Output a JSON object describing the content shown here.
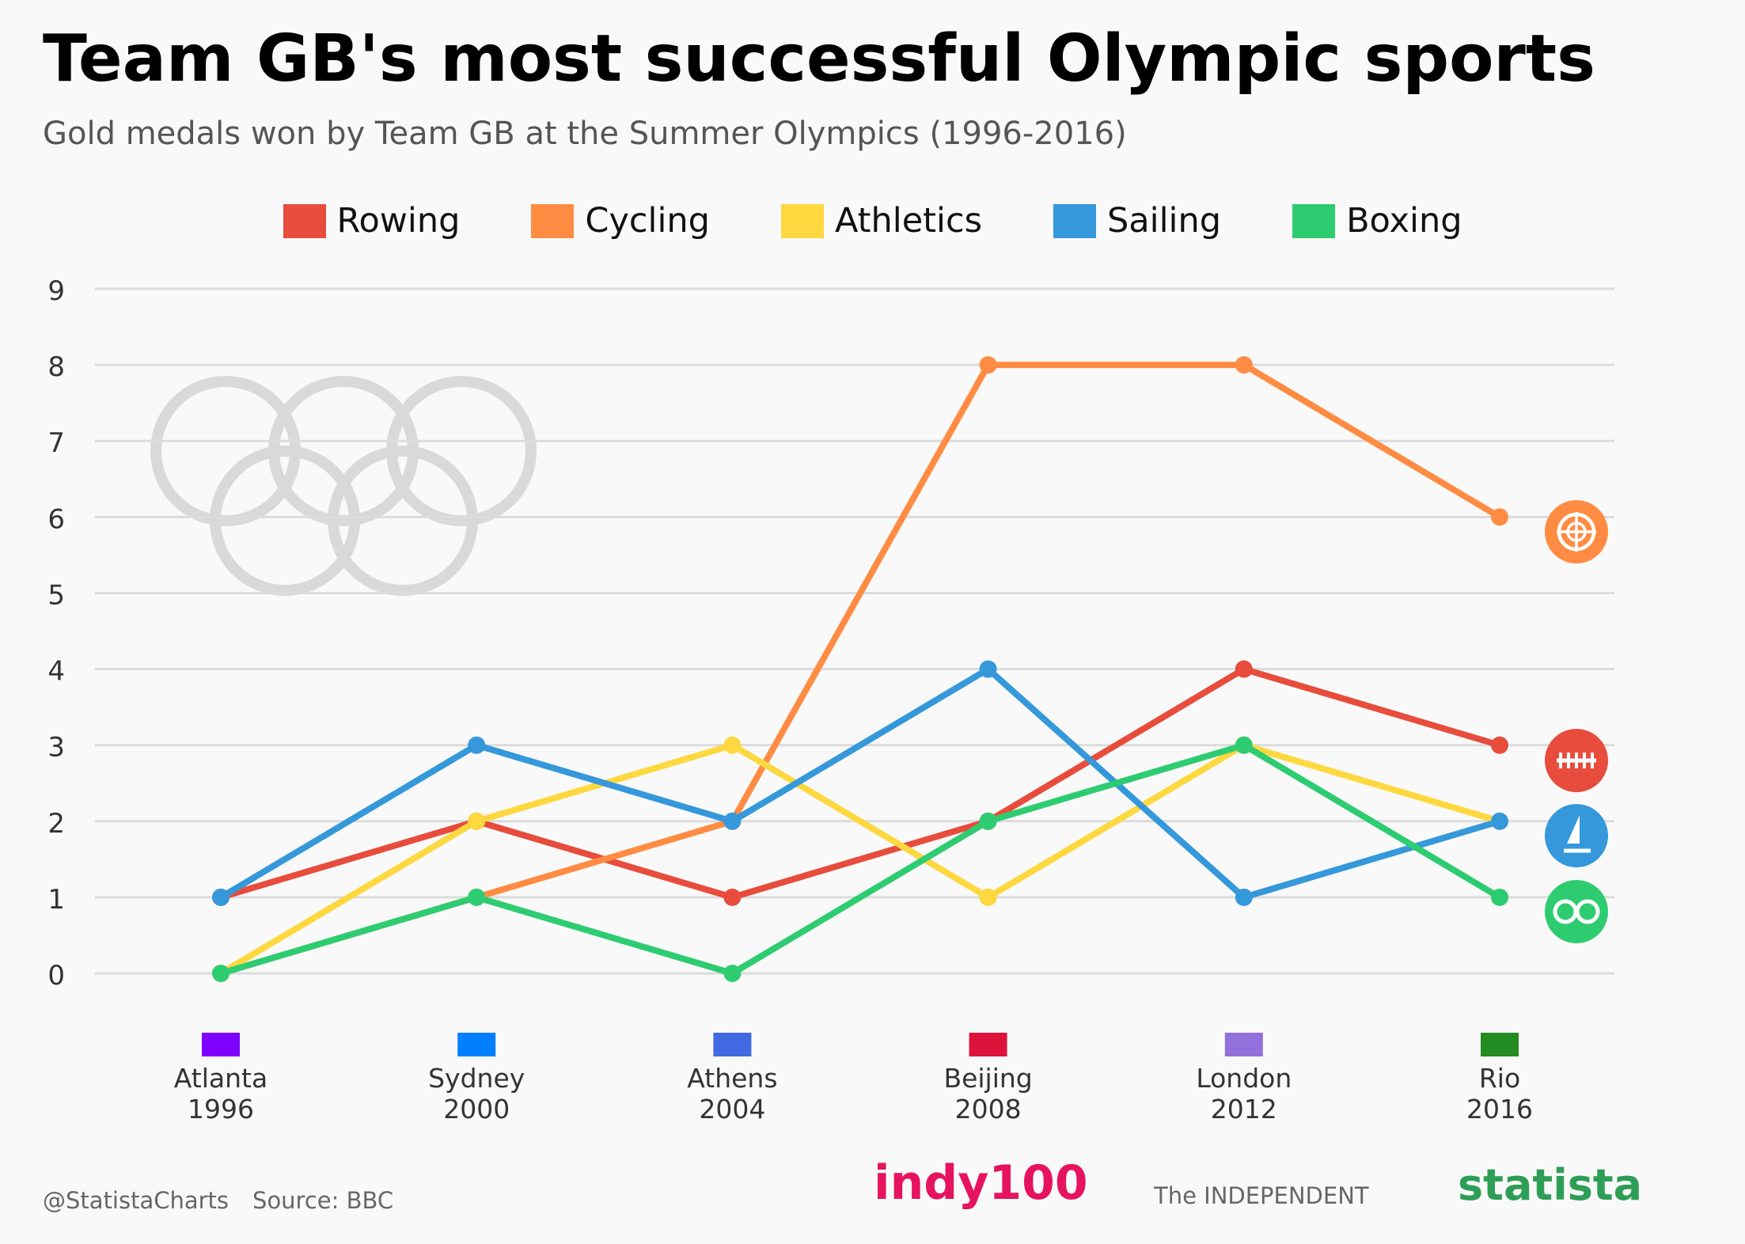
{
  "header": {
    "title": "Team GB's most successful Olympic sports",
    "subtitle": "Gold medals won by Team GB at the Summer Olympics (1996-2016)"
  },
  "legend": [
    {
      "label": "Rowing",
      "color": "#e74c3c"
    },
    {
      "label": "Cycling",
      "color": "#ff8c42"
    },
    {
      "label": "Athletics",
      "color": "#fdd83f"
    },
    {
      "label": "Sailing",
      "color": "#3498db"
    },
    {
      "label": "Boxing",
      "color": "#2ecc71"
    }
  ],
  "chart_data": {
    "type": "line",
    "title": "Team GB's most successful Olympic sports",
    "subtitle": "Gold medals won by Team GB at the Summer Olympics (1996-2016)",
    "categories": [
      {
        "city": "Atlanta",
        "year": "1996",
        "flag_color": "#7f00ff"
      },
      {
        "city": "Sydney",
        "year": "2000",
        "flag_color": "#0080ff"
      },
      {
        "city": "Athens",
        "year": "2004",
        "flag_color": "#4169e1"
      },
      {
        "city": "Beijing",
        "year": "2008",
        "flag_color": "#dc143c"
      },
      {
        "city": "London",
        "year": "2012",
        "flag_color": "#9370db"
      },
      {
        "city": "Rio",
        "year": "2016",
        "flag_color": "#228b22"
      }
    ],
    "series": [
      {
        "name": "Rowing",
        "color": "#e74c3c",
        "icon": "rowing-icon",
        "values": [
          1,
          2,
          1,
          2,
          4,
          3
        ]
      },
      {
        "name": "Cycling",
        "color": "#ff8c42",
        "icon": "cycling-icon",
        "values": [
          0,
          1,
          2,
          8,
          8,
          6
        ]
      },
      {
        "name": "Athletics",
        "color": "#fdd83f",
        "values": [
          0,
          2,
          3,
          1,
          3,
          2
        ]
      },
      {
        "name": "Sailing",
        "color": "#3498db",
        "icon": "sailing-icon",
        "values": [
          1,
          3,
          2,
          4,
          1,
          2
        ]
      },
      {
        "name": "Boxing",
        "color": "#2ecc71",
        "icon": "boxing-icon",
        "values": [
          0,
          1,
          0,
          2,
          3,
          1
        ]
      }
    ],
    "ylim": [
      0,
      9
    ],
    "yticks": [
      "0",
      "1",
      "2",
      "3",
      "4",
      "5",
      "6",
      "7",
      "8",
      "9"
    ],
    "grid": true,
    "legend_position": "top-center",
    "decoration": "olympic-rings-icon"
  },
  "footer": {
    "handle": "@StatistaCharts",
    "source": "Source: BBC",
    "logo_indy": "indy100",
    "logo_independent": "The INDEPENDENT",
    "logo_statista": "statista"
  }
}
